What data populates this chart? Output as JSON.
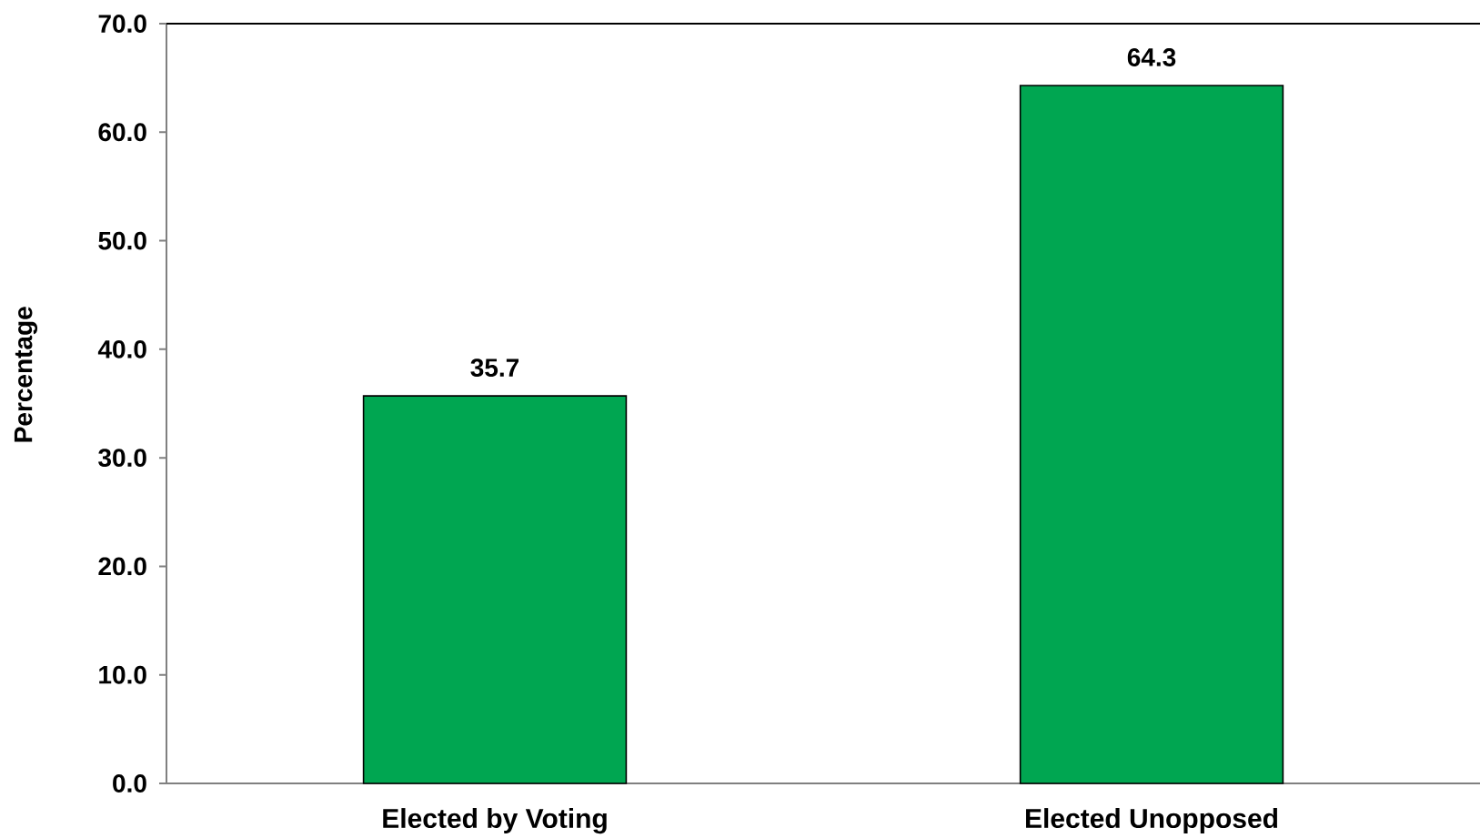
{
  "chart_data": {
    "type": "bar",
    "ylabel": "Percentage",
    "categories": [
      "Elected by Voting",
      "Elected Unopposed"
    ],
    "values": [
      35.7,
      64.3
    ],
    "color": "#00a651",
    "data_labels": true,
    "ylim": [
      0,
      70
    ],
    "yticks": [
      {
        "value": 0,
        "label": "0.0"
      },
      {
        "value": 10,
        "label": "10.0"
      },
      {
        "value": 20,
        "label": "20.0"
      },
      {
        "value": 30,
        "label": "30.0"
      },
      {
        "value": 40,
        "label": "40.0"
      },
      {
        "value": 50,
        "label": "50.0"
      },
      {
        "value": 60,
        "label": "60.0"
      },
      {
        "value": 70,
        "label": "70.0"
      }
    ]
  }
}
